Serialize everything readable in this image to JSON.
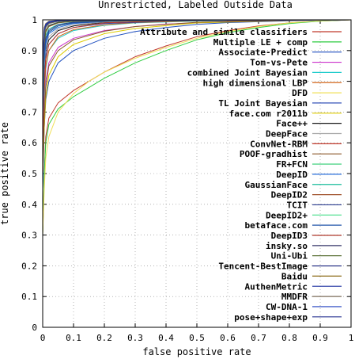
{
  "chart_data": {
    "type": "line",
    "title": "Unrestricted, Labeled Outside Data",
    "xlabel": "false positive rate",
    "ylabel": "true positive rate",
    "xlim": [
      0,
      1
    ],
    "ylim": [
      0,
      1
    ],
    "xticks": [
      "0",
      "0.1",
      "0.2",
      "0.3",
      "0.4",
      "0.5",
      "0.6",
      "0.7",
      "0.8",
      "0.9",
      "1"
    ],
    "yticks": [
      "0",
      "0.1",
      "0.2",
      "0.3",
      "0.4",
      "0.5",
      "0.6",
      "0.7",
      "0.8",
      "0.9",
      "1"
    ],
    "grid": true,
    "legend_position": "top-right",
    "series": [
      {
        "name": "Attribute and simile classifiers",
        "color": "#c0392b",
        "points": [
          [
            0,
            0.3
          ],
          [
            0.005,
            0.5
          ],
          [
            0.01,
            0.62
          ],
          [
            0.02,
            0.68
          ],
          [
            0.05,
            0.73
          ],
          [
            0.1,
            0.77
          ],
          [
            0.15,
            0.8
          ],
          [
            0.2,
            0.83
          ],
          [
            0.3,
            0.88
          ],
          [
            0.4,
            0.915
          ],
          [
            0.5,
            0.945
          ],
          [
            0.6,
            0.965
          ],
          [
            0.7,
            0.98
          ],
          [
            0.8,
            0.99
          ],
          [
            0.9,
            0.996
          ],
          [
            1,
            1
          ]
        ]
      },
      {
        "name": "Multiple LE + comp",
        "color": "#2ecc40",
        "points": [
          [
            0,
            0.3
          ],
          [
            0.005,
            0.5
          ],
          [
            0.01,
            0.6
          ],
          [
            0.02,
            0.66
          ],
          [
            0.05,
            0.71
          ],
          [
            0.1,
            0.75
          ],
          [
            0.15,
            0.78
          ],
          [
            0.2,
            0.81
          ],
          [
            0.3,
            0.86
          ],
          [
            0.4,
            0.9
          ],
          [
            0.5,
            0.935
          ],
          [
            0.6,
            0.958
          ],
          [
            0.7,
            0.975
          ],
          [
            0.8,
            0.988
          ],
          [
            0.9,
            0.996
          ],
          [
            1,
            1
          ]
        ]
      },
      {
        "name": "Associate-Predict",
        "color": "#1f4fbf",
        "points": [
          [
            0,
            0.45
          ],
          [
            0.005,
            0.65
          ],
          [
            0.01,
            0.74
          ],
          [
            0.02,
            0.8
          ],
          [
            0.05,
            0.86
          ],
          [
            0.1,
            0.9
          ],
          [
            0.2,
            0.94
          ],
          [
            0.3,
            0.962
          ],
          [
            0.4,
            0.975
          ],
          [
            0.5,
            0.985
          ],
          [
            0.6,
            0.991
          ],
          [
            0.8,
            0.997
          ],
          [
            1,
            1
          ]
        ]
      },
      {
        "name": "Tom-vs-Pete",
        "color": "#cc33cc",
        "points": [
          [
            0,
            0.5
          ],
          [
            0.005,
            0.7
          ],
          [
            0.01,
            0.8
          ],
          [
            0.02,
            0.86
          ],
          [
            0.05,
            0.91
          ],
          [
            0.1,
            0.94
          ],
          [
            0.2,
            0.965
          ],
          [
            0.3,
            0.978
          ],
          [
            0.4,
            0.986
          ],
          [
            0.6,
            0.994
          ],
          [
            0.8,
            0.998
          ],
          [
            1,
            1
          ]
        ]
      },
      {
        "name": "combined Joint Bayesian",
        "color": "#22cccc",
        "points": [
          [
            0,
            0.55
          ],
          [
            0.005,
            0.74
          ],
          [
            0.01,
            0.84
          ],
          [
            0.02,
            0.9
          ],
          [
            0.05,
            0.94
          ],
          [
            0.1,
            0.965
          ],
          [
            0.2,
            0.982
          ],
          [
            0.3,
            0.99
          ],
          [
            0.5,
            0.996
          ],
          [
            0.8,
            0.999
          ],
          [
            1,
            1
          ]
        ]
      },
      {
        "name": "high dimensional LBP",
        "color": "#d2691e",
        "points": [
          [
            0,
            0.55
          ],
          [
            0.005,
            0.76
          ],
          [
            0.01,
            0.85
          ],
          [
            0.02,
            0.9
          ],
          [
            0.05,
            0.945
          ],
          [
            0.1,
            0.968
          ],
          [
            0.2,
            0.984
          ],
          [
            0.3,
            0.991
          ],
          [
            0.5,
            0.997
          ],
          [
            0.8,
            0.999
          ],
          [
            1,
            1
          ]
        ]
      },
      {
        "name": "DFD",
        "color": "#f1e05a",
        "points": [
          [
            0,
            0.3
          ],
          [
            0.005,
            0.45
          ],
          [
            0.01,
            0.55
          ],
          [
            0.02,
            0.62
          ],
          [
            0.05,
            0.7
          ],
          [
            0.1,
            0.76
          ],
          [
            0.15,
            0.8
          ],
          [
            0.2,
            0.83
          ],
          [
            0.3,
            0.875
          ],
          [
            0.4,
            0.91
          ],
          [
            0.5,
            0.94
          ],
          [
            0.6,
            0.962
          ],
          [
            0.7,
            0.978
          ],
          [
            0.8,
            0.99
          ],
          [
            0.9,
            0.997
          ],
          [
            1,
            1
          ]
        ]
      },
      {
        "name": "TL Joint Bayesian",
        "color": "#2040b0",
        "points": [
          [
            0,
            0.6
          ],
          [
            0.005,
            0.8
          ],
          [
            0.01,
            0.88
          ],
          [
            0.02,
            0.92
          ],
          [
            0.05,
            0.955
          ],
          [
            0.1,
            0.975
          ],
          [
            0.2,
            0.988
          ],
          [
            0.4,
            0.996
          ],
          [
            0.7,
            0.999
          ],
          [
            1,
            1
          ]
        ]
      },
      {
        "name": "face.com r2011b",
        "color": "#ddcc00",
        "points": [
          [
            0,
            0.5
          ],
          [
            0.005,
            0.65
          ],
          [
            0.01,
            0.75
          ],
          [
            0.02,
            0.82
          ],
          [
            0.05,
            0.88
          ],
          [
            0.1,
            0.92
          ],
          [
            0.2,
            0.955
          ],
          [
            0.3,
            0.972
          ],
          [
            0.5,
            0.99
          ],
          [
            0.8,
            0.998
          ],
          [
            1,
            1
          ]
        ]
      },
      {
        "name": "Face++",
        "color": "#1a1a1a",
        "points": [
          [
            0,
            0.62
          ],
          [
            0.005,
            0.82
          ],
          [
            0.01,
            0.9
          ],
          [
            0.02,
            0.935
          ],
          [
            0.05,
            0.965
          ],
          [
            0.1,
            0.98
          ],
          [
            0.2,
            0.992
          ],
          [
            0.4,
            0.998
          ],
          [
            1,
            1
          ]
        ]
      },
      {
        "name": "DeepFace",
        "color": "#aaaaaa",
        "points": [
          [
            0,
            0.65
          ],
          [
            0.005,
            0.84
          ],
          [
            0.01,
            0.91
          ],
          [
            0.02,
            0.945
          ],
          [
            0.05,
            0.97
          ],
          [
            0.1,
            0.984
          ],
          [
            0.2,
            0.993
          ],
          [
            0.4,
            0.998
          ],
          [
            1,
            1
          ]
        ]
      },
      {
        "name": "ConvNet-RBM",
        "color": "#c0392b",
        "points": [
          [
            0,
            0.6
          ],
          [
            0.005,
            0.8
          ],
          [
            0.01,
            0.87
          ],
          [
            0.02,
            0.92
          ],
          [
            0.05,
            0.955
          ],
          [
            0.1,
            0.975
          ],
          [
            0.2,
            0.99
          ],
          [
            0.4,
            0.997
          ],
          [
            1,
            1
          ]
        ]
      },
      {
        "name": "POOF-gradhist",
        "color": "#8b5a2b",
        "points": [
          [
            0,
            0.5
          ],
          [
            0.005,
            0.68
          ],
          [
            0.01,
            0.78
          ],
          [
            0.02,
            0.85
          ],
          [
            0.05,
            0.9
          ],
          [
            0.1,
            0.935
          ],
          [
            0.2,
            0.963
          ],
          [
            0.3,
            0.978
          ],
          [
            0.5,
            0.992
          ],
          [
            0.8,
            0.998
          ],
          [
            1,
            1
          ]
        ]
      },
      {
        "name": "FR+FCN",
        "color": "#2ecc71",
        "points": [
          [
            0,
            0.7
          ],
          [
            0.005,
            0.88
          ],
          [
            0.01,
            0.93
          ],
          [
            0.02,
            0.96
          ],
          [
            0.05,
            0.98
          ],
          [
            0.1,
            0.99
          ],
          [
            0.2,
            0.996
          ],
          [
            0.5,
            0.999
          ],
          [
            1,
            1
          ]
        ]
      },
      {
        "name": "DeepID",
        "color": "#2a6fdb",
        "points": [
          [
            0,
            0.68
          ],
          [
            0.005,
            0.86
          ],
          [
            0.01,
            0.92
          ],
          [
            0.02,
            0.955
          ],
          [
            0.05,
            0.975
          ],
          [
            0.1,
            0.988
          ],
          [
            0.2,
            0.995
          ],
          [
            0.5,
            0.999
          ],
          [
            1,
            1
          ]
        ]
      },
      {
        "name": "GaussianFace",
        "color": "#1abc9c",
        "points": [
          [
            0,
            0.72
          ],
          [
            0.005,
            0.9
          ],
          [
            0.01,
            0.95
          ],
          [
            0.02,
            0.97
          ],
          [
            0.05,
            0.985
          ],
          [
            0.1,
            0.993
          ],
          [
            0.3,
            0.998
          ],
          [
            1,
            1
          ]
        ]
      },
      {
        "name": "DeepID2",
        "color": "#a0522d",
        "points": [
          [
            0,
            0.75
          ],
          [
            0.005,
            0.92
          ],
          [
            0.01,
            0.96
          ],
          [
            0.02,
            0.978
          ],
          [
            0.05,
            0.99
          ],
          [
            0.1,
            0.995
          ],
          [
            0.3,
            0.999
          ],
          [
            1,
            1
          ]
        ]
      },
      {
        "name": "TCIT",
        "color": "#2c3e90",
        "points": [
          [
            0,
            0.72
          ],
          [
            0.005,
            0.9
          ],
          [
            0.01,
            0.94
          ],
          [
            0.02,
            0.965
          ],
          [
            0.05,
            0.984
          ],
          [
            0.1,
            0.992
          ],
          [
            0.3,
            0.998
          ],
          [
            1,
            1
          ]
        ]
      },
      {
        "name": "DeepID2+",
        "color": "#44dd88",
        "points": [
          [
            0,
            0.8
          ],
          [
            0.005,
            0.95
          ],
          [
            0.01,
            0.975
          ],
          [
            0.02,
            0.988
          ],
          [
            0.05,
            0.995
          ],
          [
            0.1,
            0.998
          ],
          [
            1,
            1
          ]
        ]
      },
      {
        "name": "betaface.com",
        "color": "#2255aa",
        "points": [
          [
            0,
            0.7
          ],
          [
            0.005,
            0.88
          ],
          [
            0.01,
            0.93
          ],
          [
            0.02,
            0.96
          ],
          [
            0.05,
            0.98
          ],
          [
            0.1,
            0.99
          ],
          [
            0.3,
            0.998
          ],
          [
            1,
            1
          ]
        ]
      },
      {
        "name": "DeepID3",
        "color": "#b03a2e",
        "points": [
          [
            0,
            0.82
          ],
          [
            0.005,
            0.96
          ],
          [
            0.01,
            0.98
          ],
          [
            0.02,
            0.99
          ],
          [
            0.05,
            0.996
          ],
          [
            0.1,
            0.999
          ],
          [
            1,
            1
          ]
        ]
      },
      {
        "name": "insky.so",
        "color": "#333366",
        "points": [
          [
            0,
            0.78
          ],
          [
            0.005,
            0.93
          ],
          [
            0.01,
            0.965
          ],
          [
            0.02,
            0.982
          ],
          [
            0.05,
            0.992
          ],
          [
            0.1,
            0.997
          ],
          [
            1,
            1
          ]
        ]
      },
      {
        "name": "Uni-Ubi",
        "color": "#556b2f",
        "points": [
          [
            0,
            0.77
          ],
          [
            0.005,
            0.93
          ],
          [
            0.01,
            0.965
          ],
          [
            0.02,
            0.98
          ],
          [
            0.05,
            0.991
          ],
          [
            0.1,
            0.996
          ],
          [
            1,
            1
          ]
        ]
      },
      {
        "name": "Tencent-BestImage",
        "color": "#1a237e",
        "points": [
          [
            0,
            0.84
          ],
          [
            0.005,
            0.97
          ],
          [
            0.01,
            0.985
          ],
          [
            0.02,
            0.993
          ],
          [
            0.05,
            0.997
          ],
          [
            0.1,
            0.999
          ],
          [
            1,
            1
          ]
        ]
      },
      {
        "name": "Baidu",
        "color": "#8b6914",
        "points": [
          [
            0,
            0.86
          ],
          [
            0.005,
            0.975
          ],
          [
            0.01,
            0.988
          ],
          [
            0.02,
            0.995
          ],
          [
            0.05,
            0.998
          ],
          [
            1,
            1
          ]
        ]
      },
      {
        "name": "AuthenMetric",
        "color": "#3949ab",
        "points": [
          [
            0,
            0.82
          ],
          [
            0.005,
            0.96
          ],
          [
            0.01,
            0.98
          ],
          [
            0.02,
            0.99
          ],
          [
            0.05,
            0.996
          ],
          [
            0.1,
            0.999
          ],
          [
            1,
            1
          ]
        ]
      },
      {
        "name": "MMDFR",
        "color": "#7b6b5a",
        "points": [
          [
            0,
            0.8
          ],
          [
            0.005,
            0.95
          ],
          [
            0.01,
            0.975
          ],
          [
            0.02,
            0.988
          ],
          [
            0.05,
            0.995
          ],
          [
            0.1,
            0.998
          ],
          [
            1,
            1
          ]
        ]
      },
      {
        "name": "CW-DNA-1",
        "color": "#1f3fbf",
        "points": [
          [
            0,
            0.85
          ],
          [
            0.005,
            0.97
          ],
          [
            0.01,
            0.986
          ],
          [
            0.02,
            0.994
          ],
          [
            0.05,
            0.998
          ],
          [
            1,
            1
          ]
        ]
      },
      {
        "name": "pose+shape+exp",
        "color": "#283593",
        "points": [
          [
            0,
            0.83
          ],
          [
            0.005,
            0.965
          ],
          [
            0.01,
            0.982
          ],
          [
            0.02,
            0.991
          ],
          [
            0.05,
            0.997
          ],
          [
            0.1,
            0.999
          ],
          [
            1,
            1
          ]
        ]
      }
    ]
  }
}
